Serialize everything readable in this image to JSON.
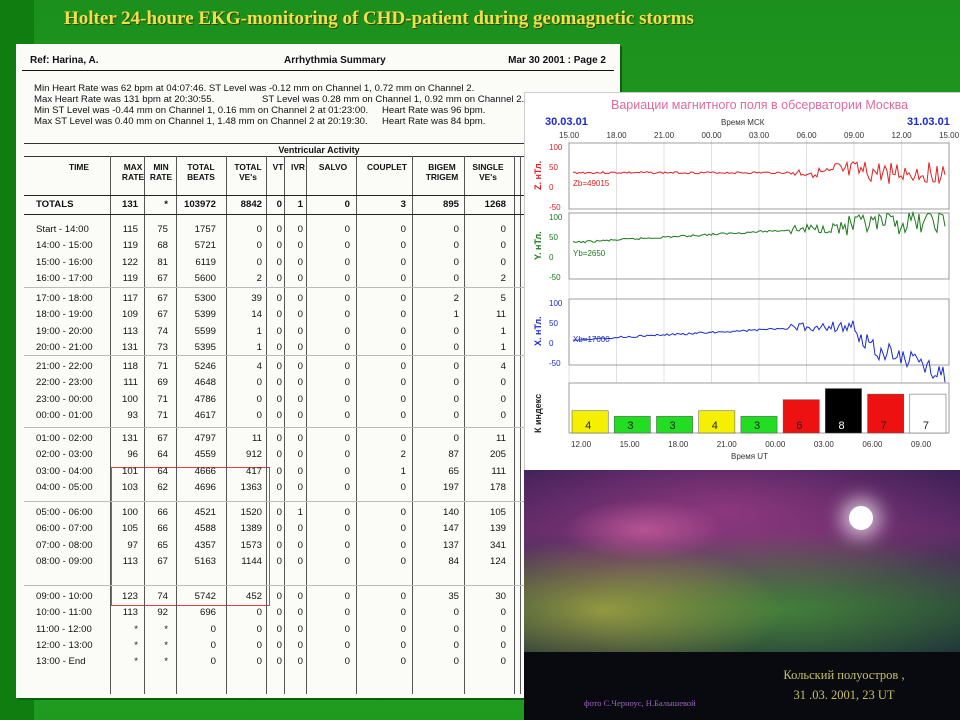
{
  "slide": {
    "title": "Holter 24-houre EKG-monitoring of CHD-patient  during geomagnetic storms"
  },
  "report": {
    "ref": "Ref: Harina, A.",
    "heading": "Arrhythmia Summary",
    "date_page": "Mar 30 2001 : Page 2",
    "stats": [
      "Min Heart Rate was 62 bpm at 04:07:46.  ST Level was -0.12 mm on Channel 1, 0.72 mm on Channel 2.",
      "Max Heart Rate was 131 bpm at 20:30:55.",
      "ST Level was 0.28 mm on Channel 1, 0.92 mm on Channel 2.",
      "Min ST Level was -0.44 mm on Channel 1, 0.16 mm on Channel 2 at 01:23:00.",
      "Heart Rate was 96 bpm.",
      "Max ST Level was 0.40 mm on Channel 1, 1.48 mm on Channel 2 at 20:19:30.",
      "Heart Rate was 84 bpm."
    ],
    "section_title": "Ventricular Activity",
    "columns": [
      "TIME",
      "MAX RATE",
      "MIN RATE",
      "TOTAL BEATS",
      "TOTAL VE's",
      "VT",
      "IVR",
      "SALVO",
      "COUPLET",
      "BIGEM TRIGEM",
      "SINGLE VE's"
    ],
    "totals": [
      "TOTALS",
      "131",
      "*",
      "103972",
      "8842",
      "0",
      "1",
      "0",
      "3",
      "895",
      "1268"
    ],
    "rows": [
      [
        "Start - 14:00",
        "115",
        "75",
        "1757",
        "0",
        "0",
        "0",
        "0",
        "0",
        "0",
        "0"
      ],
      [
        "14:00 - 15:00",
        "119",
        "68",
        "5721",
        "0",
        "0",
        "0",
        "0",
        "0",
        "0",
        "0"
      ],
      [
        "15:00 - 16:00",
        "122",
        "81",
        "6119",
        "0",
        "0",
        "0",
        "0",
        "0",
        "0",
        "0"
      ],
      [
        "16:00 - 17:00",
        "119",
        "67",
        "5600",
        "2",
        "0",
        "0",
        "0",
        "0",
        "0",
        "2"
      ],
      [
        "17:00 - 18:00",
        "117",
        "67",
        "5300",
        "39",
        "0",
        "0",
        "0",
        "0",
        "2",
        "5"
      ],
      [
        "18:00 - 19:00",
        "109",
        "67",
        "5399",
        "14",
        "0",
        "0",
        "0",
        "0",
        "1",
        "11"
      ],
      [
        "19:00 - 20:00",
        "113",
        "74",
        "5599",
        "1",
        "0",
        "0",
        "0",
        "0",
        "0",
        "1"
      ],
      [
        "20:00 - 21:00",
        "131",
        "73",
        "5395",
        "1",
        "0",
        "0",
        "0",
        "0",
        "0",
        "1"
      ],
      [
        "21:00 - 22:00",
        "118",
        "71",
        "5246",
        "4",
        "0",
        "0",
        "0",
        "0",
        "0",
        "4"
      ],
      [
        "22:00 - 23:00",
        "111",
        "69",
        "4648",
        "0",
        "0",
        "0",
        "0",
        "0",
        "0",
        "0"
      ],
      [
        "23:00 - 00:00",
        "100",
        "71",
        "4786",
        "0",
        "0",
        "0",
        "0",
        "0",
        "0",
        "0"
      ],
      [
        "00:00 - 01:00",
        "93",
        "71",
        "4617",
        "0",
        "0",
        "0",
        "0",
        "0",
        "0",
        "0"
      ],
      [
        "01:00 - 02:00",
        "131",
        "67",
        "4797",
        "11",
        "0",
        "0",
        "0",
        "0",
        "0",
        "11"
      ],
      [
        "02:00 - 03:00",
        "96",
        "64",
        "4559",
        "912",
        "0",
        "0",
        "0",
        "2",
        "87",
        "205"
      ],
      [
        "03:00 - 04:00",
        "101",
        "64",
        "4666",
        "417",
        "0",
        "0",
        "0",
        "1",
        "65",
        "111"
      ],
      [
        "04:00 - 05:00",
        "103",
        "62",
        "4696",
        "1363",
        "0",
        "0",
        "0",
        "0",
        "197",
        "178"
      ],
      [
        "05:00 - 06:00",
        "100",
        "66",
        "4521",
        "1520",
        "0",
        "1",
        "0",
        "0",
        "140",
        "105"
      ],
      [
        "06:00 - 07:00",
        "105",
        "66",
        "4588",
        "1389",
        "0",
        "0",
        "0",
        "0",
        "147",
        "139"
      ],
      [
        "07:00 - 08:00",
        "97",
        "65",
        "4357",
        "1573",
        "0",
        "0",
        "0",
        "0",
        "137",
        "341"
      ],
      [
        "08:00 - 09:00",
        "113",
        "67",
        "5163",
        "1144",
        "0",
        "0",
        "0",
        "0",
        "84",
        "124"
      ],
      [
        "09:00 - 10:00",
        "123",
        "74",
        "5742",
        "452",
        "0",
        "0",
        "0",
        "0",
        "35",
        "30"
      ],
      [
        "10:00 - 11:00",
        "113",
        "92",
        "696",
        "0",
        "0",
        "0",
        "0",
        "0",
        "0",
        "0"
      ],
      [
        "11:00 - 12:00",
        "*",
        "*",
        "0",
        "0",
        "0",
        "0",
        "0",
        "0",
        "0",
        "0"
      ],
      [
        "12:00 - 13:00",
        "*",
        "*",
        "0",
        "0",
        "0",
        "0",
        "0",
        "0",
        "0",
        "0"
      ],
      [
        "13:00 - End",
        "*",
        "*",
        "0",
        "0",
        "0",
        "0",
        "0",
        "0",
        "0",
        "0"
      ]
    ]
  },
  "chart_data": {
    "type": "line",
    "title": "Вариации магнитного поля в обсерватории Москва",
    "top_axis_label": "Время МСК",
    "bottom_axis_label": "Время UT",
    "date_left": "30.03.01",
    "date_right": "31.03.01",
    "top_ticks": [
      "15.00",
      "18.00",
      "21.00",
      "00.00",
      "03.00",
      "06.00",
      "09.00",
      "12.00",
      "15.00"
    ],
    "bottom_ticks": [
      "12.00",
      "15.00",
      "18.00",
      "21.00",
      "00.00",
      "03.00",
      "06.00",
      "09.00"
    ],
    "panels": [
      {
        "label": "Z. нТл.",
        "baseline_label": "Zb=49015",
        "color": "#e02020",
        "yticks": [
          "100",
          "50",
          "0",
          "-50"
        ]
      },
      {
        "label": "Y. нТл.",
        "baseline_label": "Yb=2650",
        "color": "#1a7a1a",
        "yticks": [
          "100",
          "50",
          "0",
          "-50"
        ]
      },
      {
        "label": "X. нТл.",
        "baseline_label": "Xb=17000",
        "color": "#1a2ad0",
        "yticks": [
          "100",
          "50",
          "0",
          "-50"
        ]
      }
    ],
    "k_index": {
      "label": "К индекс",
      "values": [
        4,
        3,
        3,
        4,
        3,
        6,
        8,
        7,
        7
      ],
      "colors": [
        "#f4f000",
        "#22dd22",
        "#22dd22",
        "#f4f000",
        "#22dd22",
        "#ee1111",
        "#000000",
        "#ee1111",
        "#ffffff"
      ]
    }
  },
  "photo": {
    "caption_line1": "Кольский полуостров ,",
    "caption_line2": "31 .03. 2001, 23 UT",
    "credit": "фото С.Черноус, Н.Балышевой"
  }
}
